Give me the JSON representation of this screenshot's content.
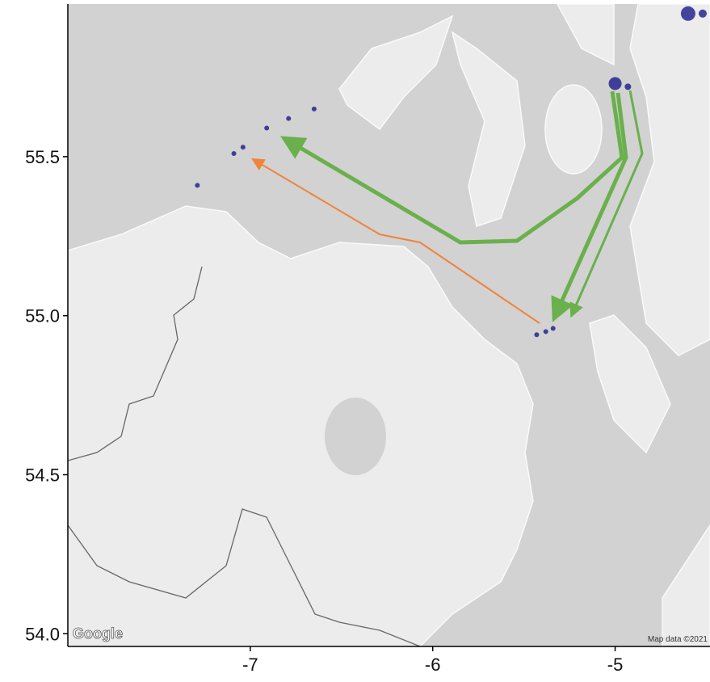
{
  "chart_data": {
    "type": "scatter",
    "xlim": [
      -8.0,
      -4.48
    ],
    "ylim": [
      53.96,
      55.98
    ],
    "xticks": [
      -7,
      -6,
      -5
    ],
    "yticks": [
      {
        "value": 54,
        "label": "54.0"
      },
      54.5,
      {
        "value": 55,
        "label": "55.0"
      },
      55.5
    ],
    "series": [
      {
        "color": "#1a1a8c",
        "x": [
          -4.6,
          -4.52,
          -5.0,
          -4.93,
          -7.09,
          -7.04,
          -6.91,
          -6.79,
          -6.65,
          -7.29,
          -5.43,
          -5.38,
          -5.34
        ],
        "values": [
          55.95,
          55.95,
          55.73,
          55.72,
          55.51,
          55.53,
          55.59,
          55.62,
          55.65,
          55.41,
          54.94,
          54.95,
          54.96
        ],
        "sizes": [
          9,
          5,
          8,
          4,
          3,
          3,
          3,
          3,
          3,
          3,
          3,
          3,
          3
        ]
      }
    ],
    "logo": "Google",
    "attribution": "Map data ©2021"
  }
}
